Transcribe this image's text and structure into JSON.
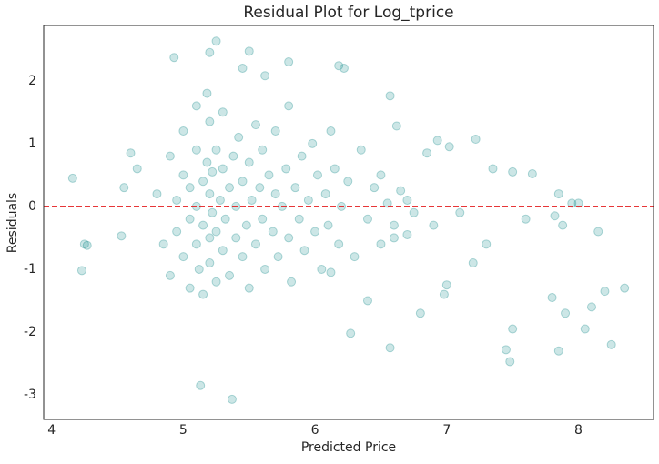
{
  "chart_data": {
    "type": "scatter",
    "title": "Residual Plot for Log_tprice",
    "x_label": "Predicted Price",
    "y_label": "Residuals",
    "color": "#008080",
    "hline": 0,
    "hline_color": "#e41a1c",
    "xlim": [
      3.94,
      8.57
    ],
    "ylim": [
      -3.39,
      2.88
    ],
    "xticks": [
      4,
      5,
      6,
      7,
      8
    ],
    "yticks": [
      -3,
      -2,
      -1,
      0,
      1,
      2
    ],
    "x": [
      4.16,
      4.23,
      4.25,
      4.27,
      4.53,
      4.55,
      4.6,
      4.65,
      4.93,
      5.25,
      5.2,
      5.5,
      5.45,
      5.62,
      5.8,
      6.18,
      6.22,
      6.57,
      6.62,
      6.85,
      6.93,
      7.02,
      7.22,
      7.35,
      7.5,
      7.65,
      7.85,
      7.95,
      8.0,
      7.6,
      7.82,
      7.88,
      8.15,
      8.35,
      8.25,
      8.2,
      8.1,
      8.05,
      7.85,
      7.9,
      7.8,
      7.5,
      7.45,
      7.48,
      7.0,
      6.98,
      6.57,
      6.27,
      5.13,
      5.37,
      6.12,
      6.4,
      6.8,
      7.2,
      7.3,
      7.1,
      6.9,
      6.7,
      6.6,
      6.5,
      4.8,
      4.85,
      4.9,
      4.9,
      4.95,
      4.95,
      5.0,
      5.0,
      5.0,
      5.05,
      5.05,
      5.05,
      5.1,
      5.1,
      5.1,
      5.1,
      5.12,
      5.15,
      5.15,
      5.15,
      5.18,
      5.18,
      5.2,
      5.2,
      5.2,
      5.2,
      5.22,
      5.22,
      5.25,
      5.25,
      5.25,
      5.28,
      5.3,
      5.3,
      5.3,
      5.32,
      5.35,
      5.35,
      5.38,
      5.4,
      5.4,
      5.42,
      5.45,
      5.45,
      5.48,
      5.5,
      5.5,
      5.52,
      5.55,
      5.55,
      5.58,
      5.6,
      5.6,
      5.62,
      5.65,
      5.68,
      5.7,
      5.7,
      5.72,
      5.75,
      5.78,
      5.8,
      5.8,
      5.82,
      5.85,
      5.88,
      5.9,
      5.92,
      5.95,
      5.98,
      6.0,
      6.02,
      6.05,
      6.08,
      6.1,
      6.12,
      6.15,
      6.18,
      6.2,
      6.25,
      6.3,
      6.35,
      6.4,
      6.45,
      6.5,
      6.55,
      6.6,
      6.65,
      6.7,
      6.75
    ],
    "values": [
      0.45,
      -1.02,
      -0.6,
      -0.62,
      -0.47,
      0.3,
      0.85,
      0.6,
      2.37,
      2.63,
      2.45,
      2.47,
      2.2,
      2.08,
      2.3,
      2.24,
      2.2,
      1.76,
      1.28,
      0.85,
      1.05,
      0.95,
      1.07,
      0.6,
      0.55,
      0.52,
      0.2,
      0.05,
      0.05,
      -0.2,
      -0.15,
      -0.3,
      -0.4,
      -1.3,
      -2.2,
      -1.35,
      -1.6,
      -1.95,
      -2.3,
      -1.7,
      -1.45,
      -1.95,
      -2.28,
      -2.47,
      -1.25,
      -1.4,
      -2.25,
      -2.02,
      -2.85,
      -3.07,
      -1.05,
      -1.5,
      -1.7,
      -0.9,
      -0.6,
      -0.1,
      -0.3,
      0.1,
      -0.5,
      0.5,
      0.2,
      -0.6,
      0.8,
      -1.1,
      0.1,
      -0.4,
      1.2,
      -0.8,
      0.5,
      -1.3,
      0.3,
      -0.2,
      0.9,
      -0.6,
      0.0,
      1.6,
      -1.0,
      0.4,
      -0.3,
      -1.4,
      1.8,
      0.7,
      -0.5,
      0.2,
      -0.9,
      1.35,
      -0.1,
      0.55,
      -1.2,
      0.9,
      -0.4,
      0.1,
      -0.7,
      0.6,
      1.5,
      -0.2,
      0.3,
      -1.1,
      0.8,
      -0.5,
      0.0,
      1.1,
      -0.8,
      0.4,
      -0.3,
      0.7,
      -1.3,
      0.1,
      -0.6,
      1.3,
      0.3,
      -0.2,
      0.9,
      -1.0,
      0.5,
      -0.4,
      0.2,
      1.2,
      -0.8,
      0.0,
      0.6,
      -0.5,
      1.6,
      -1.2,
      0.3,
      -0.2,
      0.8,
      -0.7,
      0.1,
      1.0,
      -0.4,
      0.5,
      -1.0,
      0.2,
      -0.3,
      1.2,
      0.6,
      -0.6,
      0.0,
      0.4,
      -0.8,
      0.9,
      -0.2,
      0.3,
      -0.6,
      0.05,
      -0.3,
      0.25,
      -0.45,
      -0.1
    ]
  }
}
